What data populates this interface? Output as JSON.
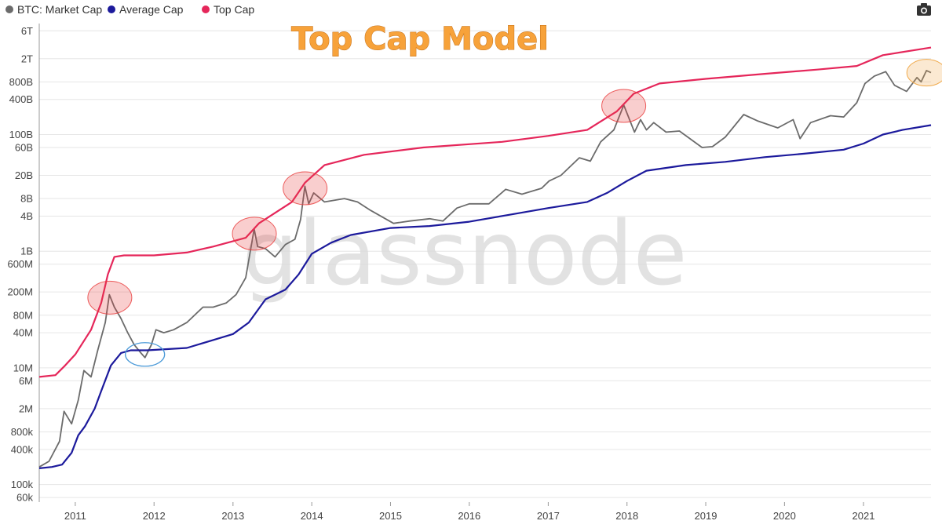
{
  "chart_data": {
    "type": "line",
    "title": "Top Cap Model",
    "watermark": "glassnode",
    "y_scale": "log",
    "ylim": [
      50000,
      8000000000000
    ],
    "xlim": [
      "2010-07-18",
      "2021-11-10"
    ],
    "grid": true,
    "legend_position": "top-left",
    "x_ticks": [
      "2011",
      "2012",
      "2013",
      "2014",
      "2015",
      "2016",
      "2017",
      "2018",
      "2019",
      "2020",
      "2021"
    ],
    "y_ticks": [
      {
        "value": 60000,
        "label": "60k"
      },
      {
        "value": 100000,
        "label": "100k"
      },
      {
        "value": 400000,
        "label": "400k"
      },
      {
        "value": 800000,
        "label": "800k"
      },
      {
        "value": 2000000,
        "label": "2M"
      },
      {
        "value": 6000000,
        "label": "6M"
      },
      {
        "value": 10000000,
        "label": "10M"
      },
      {
        "value": 40000000,
        "label": "40M"
      },
      {
        "value": 80000000,
        "label": "80M"
      },
      {
        "value": 200000000,
        "label": "200M"
      },
      {
        "value": 600000000,
        "label": "600M"
      },
      {
        "value": 1000000000,
        "label": "1B"
      },
      {
        "value": 4000000000,
        "label": "4B"
      },
      {
        "value": 8000000000,
        "label": "8B"
      },
      {
        "value": 20000000000,
        "label": "20B"
      },
      {
        "value": 60000000000,
        "label": "60B"
      },
      {
        "value": 100000000000,
        "label": "100B"
      },
      {
        "value": 400000000000,
        "label": "400B"
      },
      {
        "value": 800000000000,
        "label": "800B"
      },
      {
        "value": 2000000000000,
        "label": "2T"
      },
      {
        "value": 6000000000000,
        "label": "6T"
      }
    ],
    "series": [
      {
        "name": "BTC: Market Cap",
        "color": "#6b6b6b",
        "points": [
          [
            "2010-07-18",
            200000
          ],
          [
            "2010-09-01",
            250000
          ],
          [
            "2010-10-20",
            550000
          ],
          [
            "2010-11-10",
            1800000
          ],
          [
            "2010-12-15",
            1100000
          ],
          [
            "2011-01-15",
            2800000
          ],
          [
            "2011-02-10",
            9000000
          ],
          [
            "2011-03-15",
            7000000
          ],
          [
            "2011-04-15",
            20000000
          ],
          [
            "2011-05-20",
            60000000
          ],
          [
            "2011-06-08",
            180000000
          ],
          [
            "2011-07-01",
            110000000
          ],
          [
            "2011-08-01",
            70000000
          ],
          [
            "2011-09-01",
            40000000
          ],
          [
            "2011-10-01",
            25000000
          ],
          [
            "2011-11-01",
            18000000
          ],
          [
            "2011-11-20",
            15000000
          ],
          [
            "2011-12-20",
            25000000
          ],
          [
            "2012-01-10",
            45000000
          ],
          [
            "2012-02-15",
            40000000
          ],
          [
            "2012-04-01",
            45000000
          ],
          [
            "2012-06-01",
            60000000
          ],
          [
            "2012-08-15",
            110000000
          ],
          [
            "2012-10-01",
            110000000
          ],
          [
            "2012-12-01",
            130000000
          ],
          [
            "2013-01-15",
            180000000
          ],
          [
            "2013-03-01",
            350000000
          ],
          [
            "2013-04-09",
            2400000000
          ],
          [
            "2013-04-25",
            1200000000
          ],
          [
            "2013-06-01",
            1100000000
          ],
          [
            "2013-07-15",
            800000000
          ],
          [
            "2013-09-01",
            1300000000
          ],
          [
            "2013-10-15",
            1600000000
          ],
          [
            "2013-11-10",
            3500000000
          ],
          [
            "2013-11-30",
            13000000000
          ],
          [
            "2013-12-18",
            6500000000
          ],
          [
            "2014-01-10",
            10000000000
          ],
          [
            "2014-03-01",
            7000000000
          ],
          [
            "2014-06-01",
            8000000000
          ],
          [
            "2014-08-01",
            7000000000
          ],
          [
            "2014-10-01",
            5000000000
          ],
          [
            "2015-01-15",
            3000000000
          ],
          [
            "2015-04-01",
            3300000000
          ],
          [
            "2015-07-01",
            3600000000
          ],
          [
            "2015-09-01",
            3300000000
          ],
          [
            "2015-11-05",
            5500000000
          ],
          [
            "2016-01-01",
            6500000000
          ],
          [
            "2016-04-01",
            6500000000
          ],
          [
            "2016-06-18",
            11500000000
          ],
          [
            "2016-09-01",
            9500000000
          ],
          [
            "2016-12-01",
            12000000000
          ],
          [
            "2017-01-05",
            16000000000
          ],
          [
            "2017-03-01",
            20000000000
          ],
          [
            "2017-05-25",
            40000000000
          ],
          [
            "2017-07-15",
            35000000000
          ],
          [
            "2017-09-01",
            75000000000
          ],
          [
            "2017-11-01",
            120000000000
          ],
          [
            "2017-12-17",
            320000000000
          ],
          [
            "2018-02-05",
            110000000000
          ],
          [
            "2018-03-05",
            180000000000
          ],
          [
            "2018-04-01",
            120000000000
          ],
          [
            "2018-05-05",
            160000000000
          ],
          [
            "2018-07-01",
            110000000000
          ],
          [
            "2018-09-01",
            115000000000
          ],
          [
            "2018-11-20",
            70000000000
          ],
          [
            "2018-12-15",
            60000000000
          ],
          [
            "2019-02-01",
            62000000000
          ],
          [
            "2019-04-01",
            90000000000
          ],
          [
            "2019-06-26",
            220000000000
          ],
          [
            "2019-09-01",
            170000000000
          ],
          [
            "2019-12-01",
            130000000000
          ],
          [
            "2020-02-10",
            180000000000
          ],
          [
            "2020-03-13",
            85000000000
          ],
          [
            "2020-05-01",
            160000000000
          ],
          [
            "2020-08-01",
            210000000000
          ],
          [
            "2020-10-01",
            200000000000
          ],
          [
            "2020-12-01",
            350000000000
          ],
          [
            "2021-01-08",
            750000000000
          ],
          [
            "2021-02-20",
            1000000000000
          ],
          [
            "2021-04-14",
            1200000000000
          ],
          [
            "2021-05-25",
            700000000000
          ],
          [
            "2021-07-20",
            550000000000
          ],
          [
            "2021-09-06",
            950000000000
          ],
          [
            "2021-09-25",
            800000000000
          ],
          [
            "2021-10-20",
            1250000000000
          ],
          [
            "2021-11-10",
            1150000000000
          ]
        ]
      },
      {
        "name": "Average Cap",
        "color": "#1c1a9c",
        "points": [
          [
            "2010-07-18",
            190000
          ],
          [
            "2010-09-15",
            200000
          ],
          [
            "2010-11-01",
            220000
          ],
          [
            "2010-12-15",
            350000
          ],
          [
            "2011-01-15",
            700000
          ],
          [
            "2011-02-15",
            1000000
          ],
          [
            "2011-04-01",
            2000000
          ],
          [
            "2011-05-01",
            4000000
          ],
          [
            "2011-06-15",
            11000000
          ],
          [
            "2011-08-01",
            18000000
          ],
          [
            "2011-09-15",
            20000000
          ],
          [
            "2011-12-01",
            20000000
          ],
          [
            "2012-06-01",
            22000000
          ],
          [
            "2012-10-01",
            30000000
          ],
          [
            "2013-01-01",
            38000000
          ],
          [
            "2013-03-15",
            60000000
          ],
          [
            "2013-06-01",
            150000000
          ],
          [
            "2013-09-01",
            220000000
          ],
          [
            "2013-11-01",
            400000000
          ],
          [
            "2014-01-01",
            900000000
          ],
          [
            "2014-04-01",
            1400000000
          ],
          [
            "2014-07-01",
            1900000000
          ],
          [
            "2015-01-01",
            2500000000
          ],
          [
            "2015-07-01",
            2700000000
          ],
          [
            "2016-01-01",
            3200000000
          ],
          [
            "2016-07-01",
            4200000000
          ],
          [
            "2017-01-01",
            5500000000
          ],
          [
            "2017-07-01",
            7000000000
          ],
          [
            "2017-10-01",
            10000000000
          ],
          [
            "2018-01-01",
            16000000000
          ],
          [
            "2018-04-01",
            24000000000
          ],
          [
            "2018-10-01",
            30000000000
          ],
          [
            "2019-04-01",
            34000000000
          ],
          [
            "2019-10-01",
            41000000000
          ],
          [
            "2020-04-01",
            47000000000
          ],
          [
            "2020-10-01",
            55000000000
          ],
          [
            "2021-01-01",
            70000000000
          ],
          [
            "2021-04-01",
            100000000000
          ],
          [
            "2021-07-01",
            120000000000
          ],
          [
            "2021-11-10",
            145000000000
          ]
        ]
      },
      {
        "name": "Top Cap",
        "color": "#e5265a",
        "points": [
          [
            "2010-07-18",
            7000000
          ],
          [
            "2010-10-01",
            7500000
          ],
          [
            "2010-11-15",
            11000000
          ],
          [
            "2011-01-01",
            17000000
          ],
          [
            "2011-03-15",
            45000000
          ],
          [
            "2011-05-01",
            130000000
          ],
          [
            "2011-06-01",
            400000000
          ],
          [
            "2011-07-01",
            800000000
          ],
          [
            "2011-08-15",
            850000000
          ],
          [
            "2012-01-01",
            850000000
          ],
          [
            "2012-06-01",
            950000000
          ],
          [
            "2012-10-01",
            1200000000
          ],
          [
            "2013-03-01",
            1700000000
          ],
          [
            "2013-05-01",
            3000000000
          ],
          [
            "2013-10-01",
            7000000000
          ],
          [
            "2013-12-01",
            15000000000
          ],
          [
            "2014-03-01",
            30000000000
          ],
          [
            "2014-09-01",
            45000000000
          ],
          [
            "2015-06-01",
            60000000000
          ],
          [
            "2016-06-01",
            75000000000
          ],
          [
            "2017-01-01",
            95000000000
          ],
          [
            "2017-07-01",
            120000000000
          ],
          [
            "2017-11-15",
            250000000000
          ],
          [
            "2018-02-01",
            500000000000
          ],
          [
            "2018-06-01",
            750000000000
          ],
          [
            "2019-01-01",
            900000000000
          ],
          [
            "2019-10-01",
            1100000000000
          ],
          [
            "2020-06-01",
            1300000000000
          ],
          [
            "2020-12-01",
            1500000000000
          ],
          [
            "2021-04-01",
            2300000000000
          ],
          [
            "2021-11-10",
            3100000000000
          ]
        ]
      }
    ],
    "highlights": [
      {
        "date": "2011-06-10",
        "value": 160000000,
        "color": "#e83a3a",
        "kind": "top"
      },
      {
        "date": "2011-11-20",
        "value": 17000000,
        "color": "#4b9ad8",
        "kind": "bottom"
      },
      {
        "date": "2013-04-10",
        "value": 2000000000,
        "color": "#e83a3a",
        "kind": "top"
      },
      {
        "date": "2013-12-01",
        "value": 12000000000,
        "color": "#e83a3a",
        "kind": "top"
      },
      {
        "date": "2017-12-17",
        "value": 310000000000,
        "color": "#e83a3a",
        "kind": "top"
      },
      {
        "date": "2021-10-20",
        "value": 1150000000000,
        "color": "#f0a94a",
        "kind": "current"
      }
    ]
  },
  "toolbar": {
    "camera_icon": "camera-icon"
  }
}
